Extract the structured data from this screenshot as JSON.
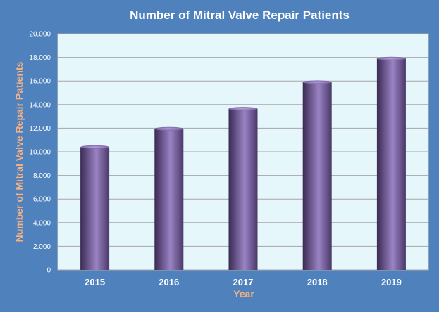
{
  "chart_data": {
    "type": "bar",
    "title": "Number of Mitral Valve Repair Patients",
    "xlabel": "Year",
    "ylabel": "Number of Mitral  Valve Repair Patients",
    "categories": [
      "2015",
      "2016",
      "2017",
      "2018",
      "2019"
    ],
    "values": [
      10400,
      11950,
      13650,
      15900,
      17900
    ],
    "ylim": [
      0,
      20000
    ],
    "yticks": [
      "0",
      "2,000",
      "4,000",
      "6,000",
      "8,000",
      "10,000",
      "12,000",
      "14,000",
      "16,000",
      "18,000",
      "20,000"
    ],
    "grid": true,
    "legend": "none"
  },
  "colors": {
    "background": "#4f81bd",
    "plot_area": "#e6f7fc",
    "bar": "#8064a2",
    "gridline": "#a6a6a6",
    "axis_title": "#f4b183",
    "text": "#ffffff"
  }
}
